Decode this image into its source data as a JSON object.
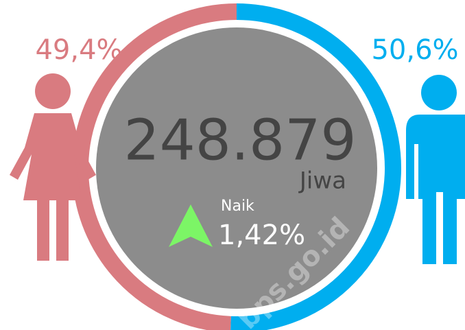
{
  "chart_data": {
    "type": "donut",
    "values": [
      49.4,
      50.6
    ],
    "value_labels": [
      "49,4%",
      "50,6%"
    ],
    "colors": [
      "#d97b80",
      "#00aeef"
    ],
    "total": "248.879",
    "unit": "Jiwa",
    "change_label": "Naik",
    "change": "1,42%",
    "watermark": "bps.go.id"
  }
}
